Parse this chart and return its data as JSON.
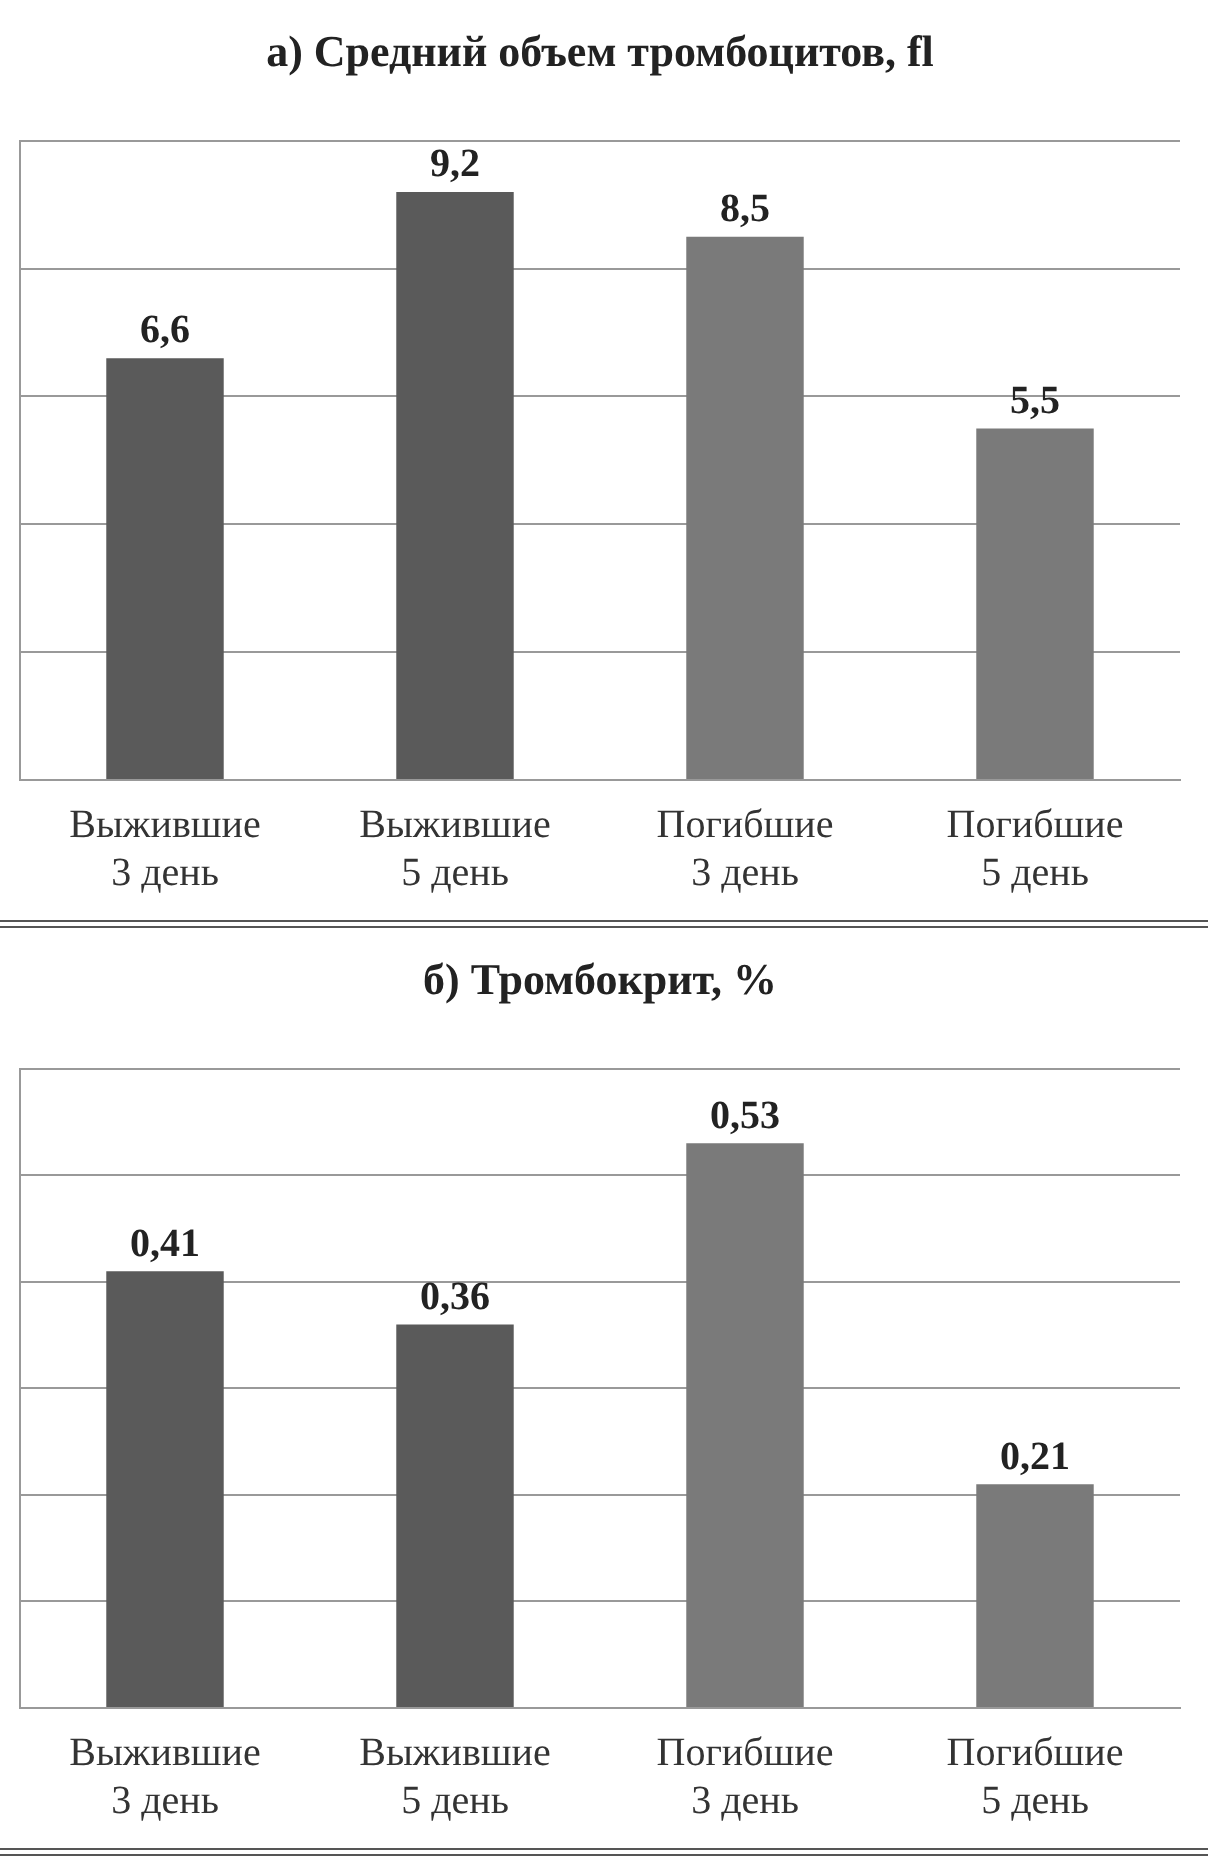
{
  "chart_data": [
    {
      "type": "bar",
      "title": "а) Средний объем тромбоцитов, fl",
      "categories": [
        "Выжившие 3 день",
        "Выжившие 5 день",
        "Погибшие 3 день",
        "Погибшие 5 день"
      ],
      "values": [
        6.6,
        9.2,
        8.5,
        5.5
      ],
      "value_labels": [
        "6,6",
        "9,2",
        "8,5",
        "5,5"
      ],
      "colors": [
        "#5a5a5a",
        "#5a5a5a",
        "#7a7a7a",
        "#7a7a7a"
      ],
      "grid": "y",
      "tick_labels": "x"
    },
    {
      "type": "bar",
      "title": "б) Тромбокрит, %",
      "categories": [
        "Выжившие 3 день",
        "Выжившие 5 день",
        "Погибшие 3 день",
        "Погибшие 5 день"
      ],
      "values": [
        0.41,
        0.36,
        0.53,
        0.21
      ],
      "value_labels": [
        "0,41",
        "0,36",
        "0,53",
        "0,21"
      ],
      "colors": [
        "#5a5a5a",
        "#5a5a5a",
        "#7a7a7a",
        "#7a7a7a"
      ],
      "grid": "y",
      "tick_labels": "x"
    }
  ]
}
